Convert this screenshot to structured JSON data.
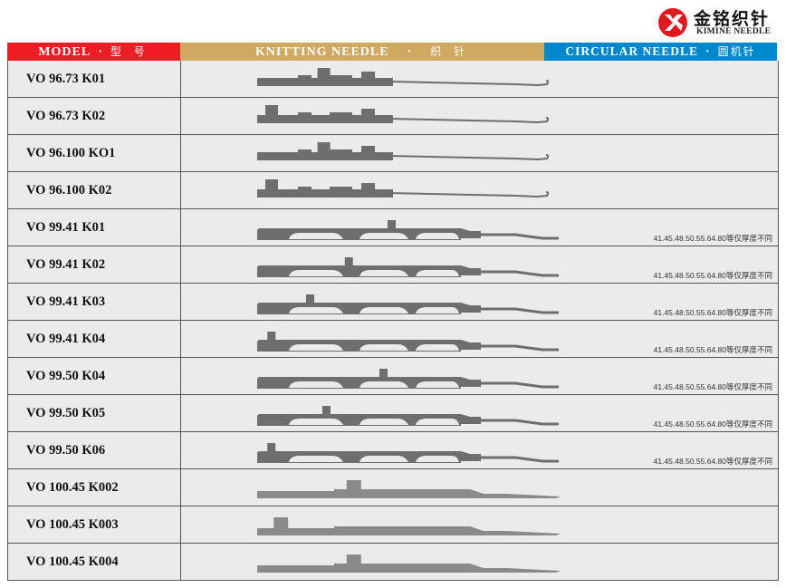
{
  "logo": {
    "cn": "金铭织针",
    "en": "KIMINE NEEDLE"
  },
  "header": {
    "model": "MODEL",
    "model_cn": "型 号",
    "needle": "KNITTING NEEDLE",
    "needle_cn": "织 针",
    "circular": "CIRCULAR NEEDLE",
    "circular_cn": "圆机针",
    "separator": "·"
  },
  "rows": [
    {
      "model": "VO 96.73 K01",
      "note": ""
    },
    {
      "model": "VO 96.73 K02",
      "note": ""
    },
    {
      "model": "VO 96.100 KO1",
      "note": ""
    },
    {
      "model": "VO 96.100 K02",
      "note": ""
    },
    {
      "model": "VO 99.41 K01",
      "note": "41.45.48.50.55.64.80等仅厚度不同"
    },
    {
      "model": "VO 99.41 K02",
      "note": "41.45.48.50.55.64.80等仅厚度不同"
    },
    {
      "model": "VO 99.41 K03",
      "note": "41.45.48.50.55.64.80等仅厚度不同"
    },
    {
      "model": "VO 99.41 K04",
      "note": "41.45.48.50.55.64.80等仅厚度不同"
    },
    {
      "model": "VO 99.50 K04",
      "note": "41.45.48.50.55.64.80等仅厚度不同"
    },
    {
      "model": "VO 99.50 K05",
      "note": "41.45.48.50.55.64.80等仅厚度不同"
    },
    {
      "model": "VO 99.50 K06",
      "note": "41.45.48.50.55.64.80等仅厚度不同"
    },
    {
      "model": "VO 100.45 K002",
      "note": ""
    },
    {
      "model": "VO 100.45 K003",
      "note": ""
    },
    {
      "model": "VO 100.45 K004",
      "note": ""
    }
  ]
}
